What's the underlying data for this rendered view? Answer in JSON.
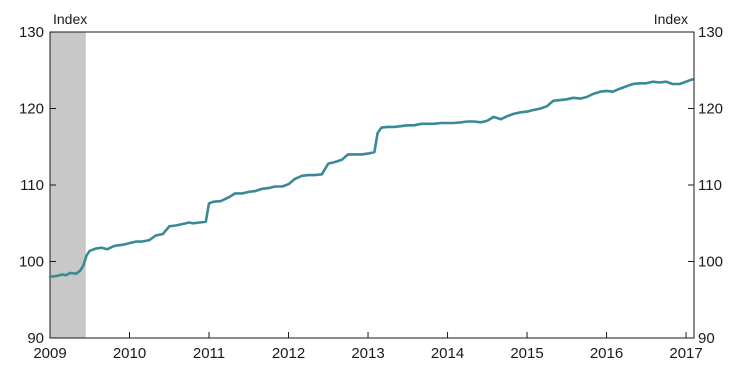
{
  "chart_data": {
    "type": "line",
    "ylabel_left": "Index",
    "ylabel_right": "Index",
    "ylim": [
      90,
      130
    ],
    "yticks": [
      90,
      100,
      110,
      120,
      130
    ],
    "xlim": [
      2009.0,
      2017.1
    ],
    "xticks": [
      2009,
      2010,
      2011,
      2012,
      2013,
      2014,
      2015,
      2016,
      2017
    ],
    "xtick_labels": [
      "2009",
      "2010",
      "2011",
      "2012",
      "2013",
      "2014",
      "2015",
      "2016",
      "2017"
    ],
    "shaded_region": {
      "x_start": 2009.0,
      "x_end": 2009.45,
      "color": "#c8c8c8"
    },
    "line_color": "#3a8a96",
    "grid": false,
    "series": [
      {
        "x": [
          2009.0,
          2009.08,
          2009.16,
          2009.2,
          2009.25,
          2009.33,
          2009.38,
          2009.42,
          2009.46,
          2009.5,
          2009.58,
          2009.65,
          2009.72,
          2009.8,
          2009.85,
          2009.92,
          2010.0,
          2010.08,
          2010.15,
          2010.25,
          2010.33,
          2010.42,
          2010.5,
          2010.58,
          2010.67,
          2010.75,
          2010.8,
          2010.88,
          2010.96,
          2011.0,
          2011.05,
          2011.15,
          2011.25,
          2011.33,
          2011.42,
          2011.5,
          2011.58,
          2011.67,
          2011.75,
          2011.83,
          2011.92,
          2012.0,
          2012.08,
          2012.17,
          2012.25,
          2012.33,
          2012.42,
          2012.5,
          2012.58,
          2012.67,
          2012.75,
          2012.83,
          2012.92,
          2013.0,
          2013.08,
          2013.12,
          2013.17,
          2013.25,
          2013.33,
          2013.42,
          2013.5,
          2013.58,
          2013.67,
          2013.75,
          2013.83,
          2013.92,
          2014.0,
          2014.08,
          2014.17,
          2014.25,
          2014.33,
          2014.42,
          2014.5,
          2014.58,
          2014.67,
          2014.75,
          2014.83,
          2014.92,
          2015.0,
          2015.08,
          2015.17,
          2015.25,
          2015.33,
          2015.42,
          2015.5,
          2015.58,
          2015.67,
          2015.75,
          2015.83,
          2015.92,
          2016.0,
          2016.08,
          2016.17,
          2016.25,
          2016.33,
          2016.42,
          2016.5,
          2016.58,
          2016.67,
          2016.75,
          2016.83,
          2016.92,
          2017.0,
          2017.08
        ],
        "y": [
          98.0,
          98.1,
          98.3,
          98.2,
          98.5,
          98.4,
          98.8,
          99.5,
          100.8,
          101.4,
          101.7,
          101.8,
          101.6,
          102.0,
          102.1,
          102.2,
          102.4,
          102.6,
          102.6,
          102.8,
          103.4,
          103.6,
          104.6,
          104.7,
          104.9,
          105.1,
          105.0,
          105.1,
          105.2,
          107.6,
          107.8,
          107.9,
          108.4,
          108.9,
          108.9,
          109.1,
          109.2,
          109.5,
          109.6,
          109.8,
          109.8,
          110.1,
          110.8,
          111.2,
          111.3,
          111.3,
          111.4,
          112.8,
          113.0,
          113.3,
          114.0,
          114.0,
          114.0,
          114.1,
          114.3,
          116.8,
          117.5,
          117.6,
          117.6,
          117.7,
          117.8,
          117.8,
          118.0,
          118.0,
          118.0,
          118.1,
          118.1,
          118.1,
          118.2,
          118.3,
          118.3,
          118.2,
          118.4,
          118.9,
          118.6,
          119.0,
          119.3,
          119.5,
          119.6,
          119.8,
          120.0,
          120.3,
          121.0,
          121.1,
          121.2,
          121.4,
          121.3,
          121.5,
          121.9,
          122.2,
          122.3,
          122.2,
          122.6,
          122.9,
          123.2,
          123.3,
          123.3,
          123.5,
          123.4,
          123.5,
          123.2,
          123.2,
          123.5,
          123.8
        ]
      }
    ]
  }
}
